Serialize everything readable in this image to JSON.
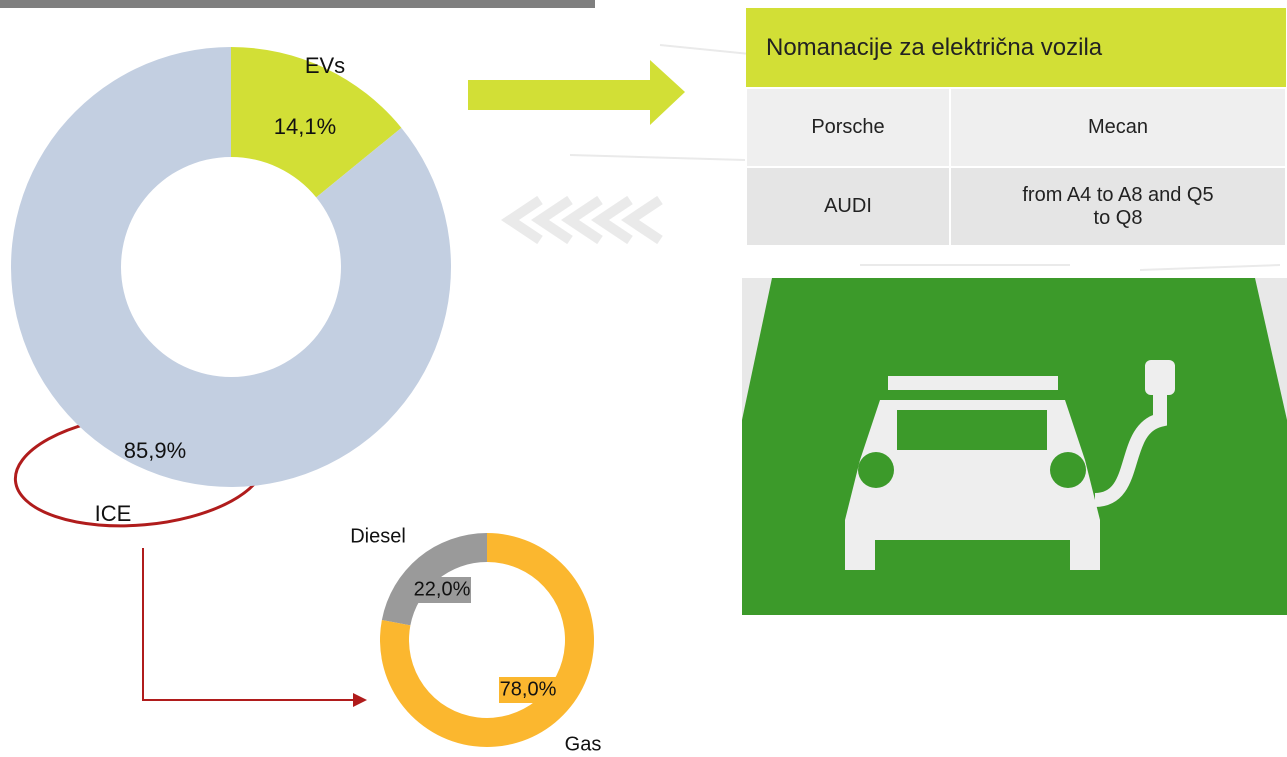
{
  "chart_data": [
    {
      "type": "pie",
      "categories": [
        "EVs",
        "ICE"
      ],
      "values": [
        14.1,
        85.9
      ],
      "value_labels": [
        "14,1%",
        "85,9%"
      ],
      "colors": [
        "#d2df36",
        "#c3cfe1"
      ]
    },
    {
      "type": "pie",
      "categories": [
        "Diesel",
        "Gas"
      ],
      "values": [
        22.0,
        78.0
      ],
      "value_labels": [
        "22,0%",
        "78,0%"
      ],
      "colors": [
        "#9a9a9a",
        "#fbb72f"
      ]
    }
  ],
  "table": {
    "header": "Nomanacije za električna vozila",
    "rows": [
      [
        "Porsche",
        "Mecan"
      ],
      [
        "AUDI",
        "from A4 to A8 and Q5 to Q8"
      ]
    ]
  }
}
